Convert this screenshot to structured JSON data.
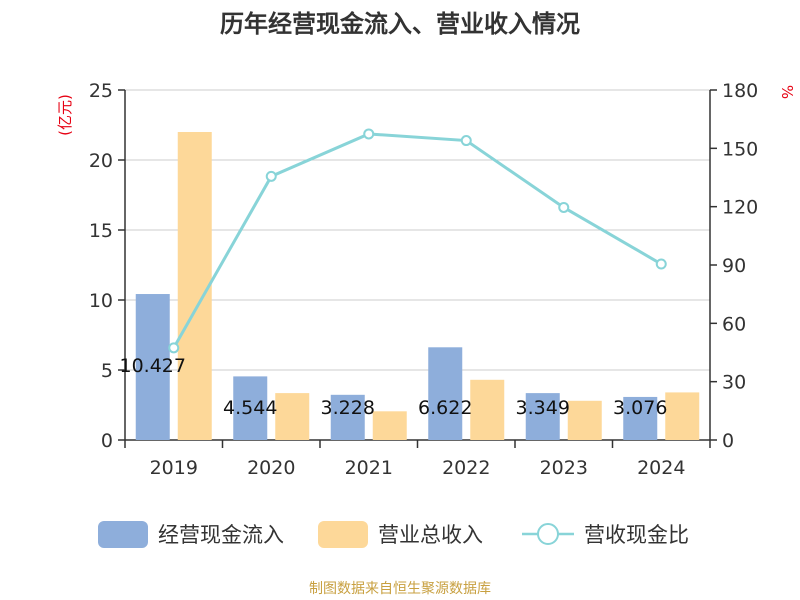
{
  "chart_data": {
    "type": "bar",
    "title": "历年经营现金流入、营业收入情况",
    "categories": [
      "2019",
      "2020",
      "2021",
      "2022",
      "2023",
      "2024"
    ],
    "y_left": {
      "unit": "(亿元)",
      "ylim": [
        0,
        25
      ],
      "ticks": [
        0,
        5,
        10,
        15,
        20,
        25
      ]
    },
    "y_right": {
      "unit": "%",
      "ylim": [
        0,
        180
      ],
      "ticks": [
        0,
        30,
        60,
        90,
        120,
        150,
        180
      ]
    },
    "series": [
      {
        "name": "经营现金流入",
        "type": "bar",
        "axis": "left",
        "color": "#8eaedb",
        "values": [
          10.427,
          4.544,
          3.228,
          6.622,
          3.349,
          3.076
        ],
        "labels": [
          "10.427",
          "4.544",
          "3.228",
          "6.622",
          "3.349",
          "3.076"
        ]
      },
      {
        "name": "营业总收入",
        "type": "bar",
        "axis": "left",
        "color": "#fdd899",
        "values": [
          22.0,
          3.35,
          2.05,
          4.3,
          2.8,
          3.4
        ]
      },
      {
        "name": "营收现金比",
        "type": "line",
        "axis": "right",
        "color": "#88d4d8",
        "values": [
          47.4,
          135.6,
          157.4,
          154.0,
          119.6,
          90.5
        ]
      }
    ],
    "grid": true,
    "legend_position": "bottom"
  },
  "source": "制图数据来自恒生聚源数据库"
}
